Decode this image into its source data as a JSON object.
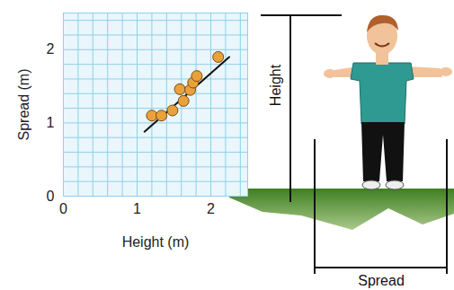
{
  "chart_data": {
    "type": "scatter",
    "xlabel": "Height (m)",
    "ylabel": "Spread (m)",
    "x": [
      1.2,
      1.33,
      1.48,
      1.58,
      1.63,
      1.72,
      1.76,
      1.81,
      2.1
    ],
    "y": [
      1.1,
      1.1,
      1.17,
      1.46,
      1.3,
      1.45,
      1.55,
      1.64,
      1.9
    ],
    "color": "#e9a23b",
    "fit_line": {
      "x": [
        1.1,
        2.25
      ],
      "y": [
        0.88,
        1.9
      ]
    },
    "xlim": [
      0,
      2.5
    ],
    "ylim": [
      0,
      2.5
    ],
    "xticks": [
      0,
      1,
      2
    ],
    "yticks": [
      0,
      1,
      2
    ],
    "grid": true,
    "annotations": {
      "height_label": "Height",
      "spread_label": "Spread"
    }
  }
}
